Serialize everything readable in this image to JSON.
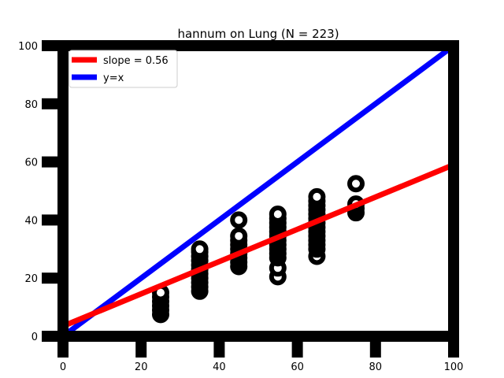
{
  "chart_data": {
    "type": "scatter",
    "title": "hannum on Lung (N = 223)",
    "xlabel": "",
    "ylabel": "",
    "xlim": [
      0,
      100
    ],
    "ylim": [
      0,
      100
    ],
    "xticks": [
      0,
      20,
      40,
      60,
      80,
      100
    ],
    "yticks": [
      0,
      20,
      40,
      60,
      80,
      100
    ],
    "grid": false,
    "legend_position": "top-left",
    "series": [
      {
        "kind": "points",
        "color": "#000000",
        "points": [
          [
            25,
            7.5
          ],
          [
            25,
            9
          ],
          [
            25,
            10.5
          ],
          [
            25,
            12
          ],
          [
            25,
            13.5
          ],
          [
            25,
            15
          ],
          [
            35,
            15.5
          ],
          [
            35,
            17
          ],
          [
            35,
            18.5
          ],
          [
            35,
            20
          ],
          [
            35,
            21.5
          ],
          [
            35,
            23
          ],
          [
            35,
            24.5
          ],
          [
            35,
            26
          ],
          [
            35,
            27.5
          ],
          [
            35,
            29
          ],
          [
            35,
            30
          ],
          [
            45,
            24
          ],
          [
            45,
            25.5
          ],
          [
            45,
            27
          ],
          [
            45,
            28.5
          ],
          [
            45,
            30
          ],
          [
            45,
            31.5
          ],
          [
            45,
            33
          ],
          [
            45,
            34.5
          ],
          [
            45,
            40
          ],
          [
            55,
            20.5
          ],
          [
            55,
            23.5
          ],
          [
            55,
            27
          ],
          [
            55,
            28.5
          ],
          [
            55,
            30
          ],
          [
            55,
            31.5
          ],
          [
            55,
            33
          ],
          [
            55,
            34.5
          ],
          [
            55,
            36
          ],
          [
            55,
            37.5
          ],
          [
            55,
            39
          ],
          [
            55,
            40.5
          ],
          [
            55,
            42
          ],
          [
            65,
            27.5
          ],
          [
            65,
            30
          ],
          [
            65,
            31.5
          ],
          [
            65,
            33
          ],
          [
            65,
            34.5
          ],
          [
            65,
            36
          ],
          [
            65,
            37.5
          ],
          [
            65,
            39
          ],
          [
            65,
            40.5
          ],
          [
            65,
            42
          ],
          [
            65,
            43.5
          ],
          [
            65,
            45
          ],
          [
            65,
            46.5
          ],
          [
            65,
            48
          ],
          [
            75,
            42.5
          ],
          [
            75,
            44
          ],
          [
            75,
            45.5
          ],
          [
            75,
            52.5
          ]
        ]
      },
      {
        "kind": "line",
        "name": "slope = 0.56",
        "color": "#ff0000",
        "points": [
          [
            0,
            3.5
          ],
          [
            100,
            59
          ]
        ]
      },
      {
        "kind": "line",
        "name": "y=x",
        "color": "#0000ff",
        "points": [
          [
            0,
            0
          ],
          [
            100,
            100
          ]
        ]
      }
    ]
  }
}
